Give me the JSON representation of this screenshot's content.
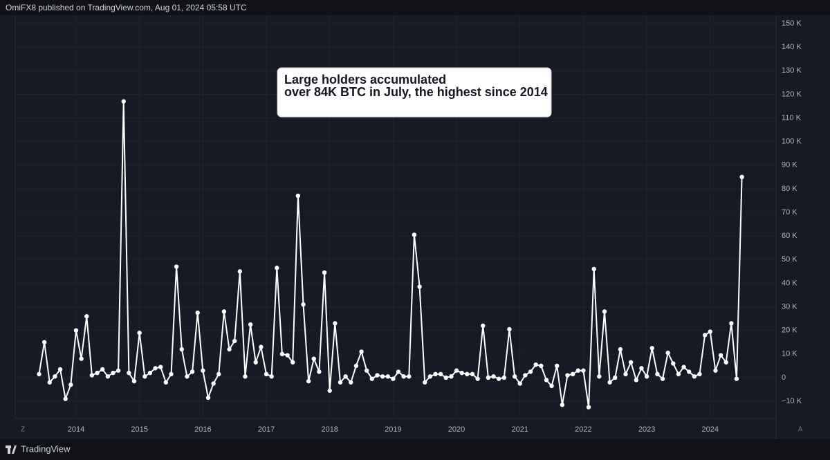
{
  "header": {
    "text": "OmiFX8 published on TradingView.com, Aug 01, 2024 05:58 UTC"
  },
  "footer": {
    "brand": "TradingView",
    "left_button": "Z",
    "right_button": "A"
  },
  "chart_data": {
    "type": "line",
    "annotation": [
      "Large holders accumulated",
      "over 84K BTC in July, the highest since 2014"
    ],
    "color": "#ffffff",
    "grid": true,
    "x": [
      "2013-06",
      "2013-07",
      "2013-08",
      "2013-09",
      "2013-10",
      "2013-11",
      "2013-12",
      "2014-01",
      "2014-02",
      "2014-03",
      "2014-04",
      "2014-05",
      "2014-06",
      "2014-07",
      "2014-08",
      "2014-09",
      "2014-10",
      "2014-11",
      "2014-12",
      "2015-01",
      "2015-02",
      "2015-03",
      "2015-04",
      "2015-05",
      "2015-06",
      "2015-07",
      "2015-08",
      "2015-09",
      "2015-10",
      "2015-11",
      "2015-12",
      "2016-01",
      "2016-02",
      "2016-03",
      "2016-04",
      "2016-05",
      "2016-06",
      "2016-07",
      "2016-08",
      "2016-09",
      "2016-10",
      "2016-11",
      "2016-12",
      "2017-01",
      "2017-02",
      "2017-03",
      "2017-04",
      "2017-05",
      "2017-06",
      "2017-07",
      "2017-08",
      "2017-09",
      "2017-10",
      "2017-11",
      "2017-12",
      "2018-01",
      "2018-02",
      "2018-03",
      "2018-04",
      "2018-05",
      "2018-06",
      "2018-07",
      "2018-08",
      "2018-09",
      "2018-10",
      "2018-11",
      "2018-12",
      "2019-01",
      "2019-02",
      "2019-03",
      "2019-04",
      "2019-05",
      "2019-06",
      "2019-07",
      "2019-08",
      "2019-09",
      "2019-10",
      "2019-11",
      "2019-12",
      "2020-01",
      "2020-02",
      "2020-03",
      "2020-04",
      "2020-05",
      "2020-06",
      "2020-07",
      "2020-08",
      "2020-09",
      "2020-10",
      "2020-11",
      "2020-12",
      "2021-01",
      "2021-02",
      "2021-03",
      "2021-04",
      "2021-05",
      "2021-06",
      "2021-07",
      "2021-08",
      "2021-09",
      "2021-10",
      "2021-11",
      "2021-12",
      "2022-01",
      "2022-02",
      "2022-03",
      "2022-04",
      "2022-05",
      "2022-06",
      "2022-07",
      "2022-08",
      "2022-09",
      "2022-10",
      "2022-11",
      "2022-12",
      "2023-01",
      "2023-02",
      "2023-03",
      "2023-04",
      "2023-05",
      "2023-06",
      "2023-07",
      "2023-08",
      "2023-09",
      "2023-10",
      "2023-11",
      "2023-12",
      "2024-01",
      "2024-02",
      "2024-03",
      "2024-04",
      "2024-05",
      "2024-06",
      "2024-07"
    ],
    "values": [
      1500,
      15000,
      -2000,
      500,
      3500,
      -9000,
      -3000,
      20000,
      8000,
      26000,
      1000,
      2000,
      3500,
      500,
      2000,
      3000,
      117000,
      2000,
      -1500,
      19000,
      500,
      2000,
      4000,
      4500,
      -2000,
      1500,
      47000,
      12000,
      500,
      2500,
      27500,
      3000,
      -8500,
      -2500,
      1500,
      28000,
      12000,
      15500,
      45000,
      500,
      22500,
      6500,
      13000,
      1500,
      500,
      46500,
      10000,
      9500,
      6500,
      77000,
      31000,
      -1500,
      8000,
      2500,
      44500,
      -5500,
      23000,
      -2000,
      500,
      -2000,
      5000,
      11000,
      3000,
      -500,
      1000,
      500,
      500,
      -500,
      2500,
      500,
      500,
      60500,
      38500,
      -2000,
      500,
      1500,
      1500,
      0,
      500,
      3000,
      2000,
      1500,
      1500,
      -500,
      22000,
      0,
      500,
      -500,
      0,
      20500,
      500,
      -2500,
      1000,
      2500,
      5500,
      5000,
      -1000,
      -3500,
      5000,
      -11500,
      1000,
      1500,
      3000,
      3000,
      -12500,
      46000,
      500,
      28000,
      -2000,
      0,
      12000,
      1500,
      6500,
      -1000,
      4000,
      500,
      12500,
      1500,
      -500,
      10500,
      6000,
      1500,
      4500,
      2500,
      500,
      1500,
      18000,
      19500,
      3000,
      9500,
      6500,
      23000,
      -500,
      85000
    ],
    "xticks": [
      "2014",
      "2015",
      "2016",
      "2017",
      "2018",
      "2019",
      "2020",
      "2021",
      "2022",
      "2023",
      "2024"
    ],
    "ylim": [
      -17300,
      153500
    ],
    "yticks": [
      {
        "value": -10000,
        "label": "−10 K"
      },
      0,
      {
        "value": 10000,
        "label": "10 K"
      },
      {
        "value": 20000,
        "label": "20 K"
      },
      {
        "value": 30000,
        "label": "30 K"
      },
      {
        "value": 40000,
        "label": "40 K"
      },
      {
        "value": 50000,
        "label": "50 K"
      },
      {
        "value": 60000,
        "label": "60 K"
      },
      {
        "value": 70000,
        "label": "70 K"
      },
      {
        "value": 80000,
        "label": "80 K"
      },
      {
        "value": 90000,
        "label": "90 K"
      },
      {
        "value": 100000,
        "label": "100 K"
      },
      {
        "value": 110000,
        "label": "110 K"
      },
      {
        "value": 120000,
        "label": "120 K"
      },
      {
        "value": 130000,
        "label": "130 K"
      },
      {
        "value": 140000,
        "label": "140 K"
      },
      {
        "value": 150000,
        "label": "150 K"
      }
    ]
  }
}
